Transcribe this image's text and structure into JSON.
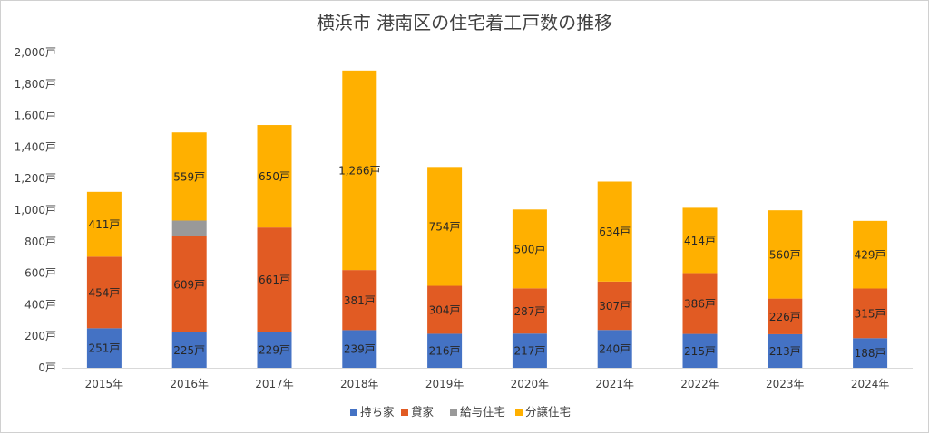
{
  "chart_data": {
    "type": "bar",
    "stacked": true,
    "title": "横浜市 港南区の住宅着工戸数の推移",
    "xlabel": "",
    "ylabel": "",
    "ylim": [
      0,
      2000
    ],
    "yticks": [
      0,
      200,
      400,
      600,
      800,
      1000,
      1200,
      1400,
      1600,
      1800,
      2000
    ],
    "ytick_labels": [
      "0戸",
      "200戸",
      "400戸",
      "600戸",
      "800戸",
      "1,000戸",
      "1,200戸",
      "1,400戸",
      "1,600戸",
      "1,800戸",
      "2,000戸"
    ],
    "grid": false,
    "legend_position": "bottom",
    "categories": [
      "2015年",
      "2016年",
      "2017年",
      "2018年",
      "2019年",
      "2020年",
      "2021年",
      "2022年",
      "2023年",
      "2024年"
    ],
    "series": [
      {
        "name": "持ち家",
        "color": "#4472C4",
        "values": [
          251,
          225,
          229,
          239,
          216,
          217,
          240,
          215,
          213,
          188
        ],
        "labels": [
          "251戸",
          "225戸",
          "229戸",
          "239戸",
          "216戸",
          "217戸",
          "240戸",
          "215戸",
          "213戸",
          "188戸"
        ]
      },
      {
        "name": "貸家",
        "color": "#E15B23",
        "values": [
          454,
          609,
          661,
          381,
          304,
          287,
          307,
          386,
          226,
          315
        ],
        "labels": [
          "454戸",
          "609戸",
          "661戸",
          "381戸",
          "304戸",
          "287戸",
          "307戸",
          "386戸",
          "226戸",
          "315戸"
        ]
      },
      {
        "name": "給与住宅",
        "color": "#999999",
        "values": [
          0,
          100,
          0,
          0,
          0,
          0,
          0,
          0,
          0,
          0
        ],
        "labels": [
          "",
          "",
          "",
          "",
          "",
          "",
          "",
          "",
          "",
          ""
        ]
      },
      {
        "name": "分譲住宅",
        "color": "#FFB000",
        "values": [
          411,
          559,
          650,
          1266,
          754,
          500,
          634,
          414,
          560,
          429
        ],
        "labels": [
          "411戸",
          "559戸",
          "650戸",
          "1,266戸",
          "754戸",
          "500戸",
          "634戸",
          "414戸",
          "560戸",
          "429戸"
        ]
      }
    ]
  }
}
